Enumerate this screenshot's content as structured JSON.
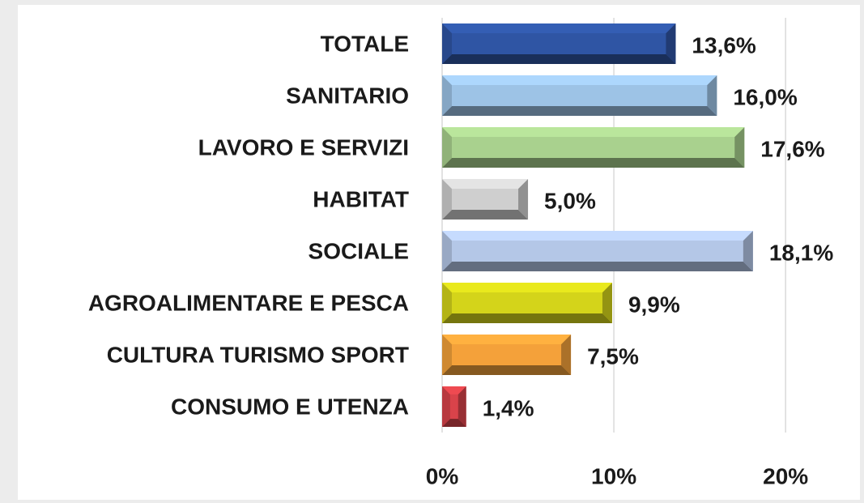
{
  "chart_data": {
    "type": "bar",
    "orientation": "horizontal",
    "categories": [
      "TOTALE",
      "SANITARIO",
      "LAVORO E SERVIZI",
      "HABITAT",
      "SOCIALE",
      "AGROALIMENTARE E PESCA",
      "CULTURA TURISMO SPORT",
      "CONSUMO E UTENZA"
    ],
    "values": [
      13.6,
      16.0,
      17.6,
      5.0,
      18.1,
      9.9,
      7.5,
      1.4
    ],
    "value_labels": [
      "13,6%",
      "16,0%",
      "17,6%",
      "5,0%",
      "18,1%",
      "9,9%",
      "7,5%",
      "1,4%"
    ],
    "colors": [
      "#2f55a4",
      "#9dc3e6",
      "#a9d18e",
      "#cfcfcf",
      "#b4c7e7",
      "#d4d41a",
      "#f4a13a",
      "#d9434a"
    ],
    "xlim": [
      0,
      24
    ],
    "xticks": [
      {
        "value": 0,
        "label": "0%"
      },
      {
        "value": 10,
        "label": "10%"
      },
      {
        "value": 20,
        "label": "20%"
      }
    ],
    "grid": true
  }
}
